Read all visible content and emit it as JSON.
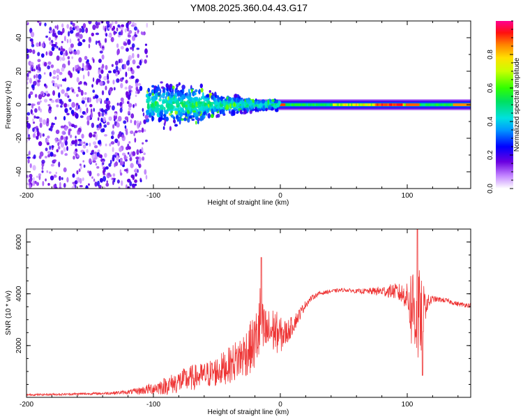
{
  "title": "YM08.2025.360.04.43.G17",
  "chart_data": [
    {
      "type": "heatmap",
      "name": "spectrogram",
      "xlabel": "Height of straight line (km)",
      "ylabel": "Frequency (Hz)",
      "xlim": [
        -200,
        150
      ],
      "ylim": [
        -50,
        50
      ],
      "xticks": [
        -200,
        -100,
        0,
        100
      ],
      "xtick_labels": [
        "-200",
        "-100",
        "0",
        "100"
      ],
      "yticks": [
        -40,
        -20,
        0,
        20,
        40
      ],
      "ytick_labels": [
        "-40",
        "-20",
        "0",
        "20",
        "40"
      ],
      "colorbar": {
        "label": "Normalized spectral amplitude",
        "range": [
          0,
          1
        ],
        "ticks": [
          0.0,
          0.2,
          0.4,
          0.6,
          0.8
        ],
        "tick_labels": [
          "0.0",
          "0.2",
          "0.4",
          "0.6",
          "0.8"
        ],
        "colormap": "rainbow (white-violet-blue-cyan-green-yellow-orange-red-magenta)"
      },
      "description_of_content": {
        "diffuse_noise_region_km": [
          -200,
          -105
        ],
        "signal_onset_km": -105,
        "signal_center_freq_hz": 0,
        "signal_halfwidth_hz_at_minus60km": 8,
        "signal_halfwidth_hz_above_0km": 2,
        "peak_amplitude_regions_km": [
          [
            0,
            2
          ],
          [
            75,
            95
          ],
          [
            98,
            108
          ],
          [
            140,
            150
          ]
        ]
      }
    },
    {
      "type": "line",
      "name": "snr",
      "xlabel": "Height of straight line (km)",
      "ylabel": "SNR (10 * v/v)",
      "xlim": [
        -200,
        150
      ],
      "ylim": [
        0,
        6500
      ],
      "xticks": [
        -200,
        -100,
        0,
        100
      ],
      "xtick_labels": [
        "-200",
        "-100",
        "0",
        "100"
      ],
      "yticks": [
        2000,
        4000,
        6000
      ],
      "ytick_labels": [
        "2000",
        "4000",
        "6000"
      ],
      "color": "#ee3333",
      "series": [
        {
          "name": "SNR",
          "x": [
            -200,
            -180,
            -160,
            -140,
            -120,
            -110,
            -100,
            -90,
            -80,
            -70,
            -60,
            -50,
            -40,
            -30,
            -20,
            -16,
            -14,
            -10,
            -5,
            0,
            5,
            10,
            15,
            20,
            25,
            30,
            40,
            50,
            60,
            70,
            80,
            90,
            95,
            100,
            103,
            105,
            108,
            110,
            112,
            115,
            120,
            130,
            140,
            150
          ],
          "y": [
            100,
            110,
            130,
            150,
            200,
            260,
            350,
            450,
            600,
            750,
            850,
            1000,
            1250,
            1600,
            2100,
            2800,
            2500,
            2500,
            2600,
            2400,
            2500,
            2800,
            3200,
            3600,
            3850,
            4000,
            4100,
            4150,
            4100,
            4100,
            4100,
            4100,
            4000,
            3900,
            3500,
            3500,
            3200,
            3000,
            3300,
            3600,
            3800,
            3750,
            3600,
            3550
          ],
          "noise_amplitude": [
            40,
            40,
            45,
            50,
            80,
            150,
            250,
            350,
            450,
            500,
            500,
            600,
            700,
            900,
            1100,
            1600,
            1200,
            900,
            900,
            700,
            500,
            350,
            250,
            150,
            100,
            80,
            70,
            70,
            80,
            120,
            200,
            300,
            400,
            500,
            1600,
            2000,
            2200,
            1800,
            1200,
            400,
            120,
            90,
            90,
            90
          ]
        }
      ],
      "annotations": [
        {
          "x": -15,
          "y": 5400,
          "note": "spike"
        },
        {
          "x": 108,
          "y": 6500,
          "note": "spike"
        },
        {
          "x": 112,
          "y": 800,
          "note": "dip"
        }
      ]
    }
  ]
}
